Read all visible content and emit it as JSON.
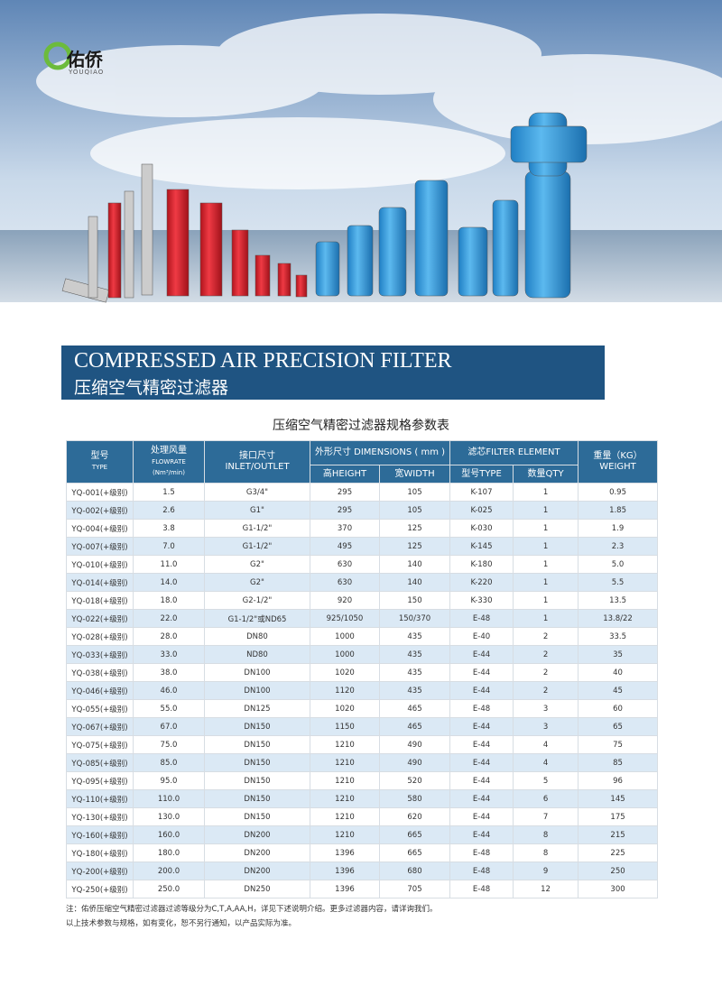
{
  "header": {
    "logo": "佑侨",
    "logo_sub": "YOUQIAO"
  },
  "banner": {
    "title_en": "COMPRESSED AIR PRECISION FILTER",
    "title_cn": "压缩空气精密过滤器"
  },
  "table": {
    "title": "压缩空气精密过滤器规格参数表",
    "head": {
      "type": [
        "型号",
        "TYPE"
      ],
      "flow": [
        "处理风量",
        "FLOWRATE",
        "(Nm³/min)"
      ],
      "inlet": [
        "接口尺寸",
        "INLET/OUTLET"
      ],
      "dimensions": "外形尺寸 DIMENSIONS ( mm )",
      "height": "高HEIGHT",
      "width": "宽WIDTH",
      "element": "滤芯FILTER ELEMENT",
      "element_type": "型号TYPE",
      "element_qty": "数量QTY",
      "weight": [
        "重量（KG）",
        "WEIGHT"
      ]
    },
    "rows": [
      [
        "YQ-001(+级别)",
        "1.5",
        "G3/4\"",
        "295",
        "105",
        "K-107",
        "1",
        "0.95"
      ],
      [
        "YQ-002(+级别)",
        "2.6",
        "G1\"",
        "295",
        "105",
        "K-025",
        "1",
        "1.85"
      ],
      [
        "YQ-004(+级别)",
        "3.8",
        "G1-1/2\"",
        "370",
        "125",
        "K-030",
        "1",
        "1.9"
      ],
      [
        "YQ-007(+级别)",
        "7.0",
        "G1-1/2\"",
        "495",
        "125",
        "K-145",
        "1",
        "2.3"
      ],
      [
        "YQ-010(+级别)",
        "11.0",
        "G2\"",
        "630",
        "140",
        "K-180",
        "1",
        "5.0"
      ],
      [
        "YQ-014(+级别)",
        "14.0",
        "G2\"",
        "630",
        "140",
        "K-220",
        "1",
        "5.5"
      ],
      [
        "YQ-018(+级别)",
        "18.0",
        "G2-1/2\"",
        "920",
        "150",
        "K-330",
        "1",
        "13.5"
      ],
      [
        "YQ-022(+级别)",
        "22.0",
        "G1-1/2\"或ND65",
        "925/1050",
        "150/370",
        "E-48",
        "1",
        "13.8/22"
      ],
      [
        "YQ-028(+级别)",
        "28.0",
        "DN80",
        "1000",
        "435",
        "E-40",
        "2",
        "33.5"
      ],
      [
        "YQ-033(+级别)",
        "33.0",
        "ND80",
        "1000",
        "435",
        "E-44",
        "2",
        "35"
      ],
      [
        "YQ-038(+级别)",
        "38.0",
        "DN100",
        "1020",
        "435",
        "E-44",
        "2",
        "40"
      ],
      [
        "YQ-046(+级别)",
        "46.0",
        "DN100",
        "1120",
        "435",
        "E-44",
        "2",
        "45"
      ],
      [
        "YQ-055(+级别)",
        "55.0",
        "DN125",
        "1020",
        "465",
        "E-48",
        "3",
        "60"
      ],
      [
        "YQ-067(+级别)",
        "67.0",
        "DN150",
        "1150",
        "465",
        "E-44",
        "3",
        "65"
      ],
      [
        "YQ-075(+级别)",
        "75.0",
        "DN150",
        "1210",
        "490",
        "E-44",
        "4",
        "75"
      ],
      [
        "YQ-085(+级别)",
        "85.0",
        "DN150",
        "1210",
        "490",
        "E-44",
        "4",
        "85"
      ],
      [
        "YQ-095(+级别)",
        "95.0",
        "DN150",
        "1210",
        "520",
        "E-44",
        "5",
        "96"
      ],
      [
        "YQ-110(+级别)",
        "110.0",
        "DN150",
        "1210",
        "580",
        "E-44",
        "6",
        "145"
      ],
      [
        "YQ-130(+级别)",
        "130.0",
        "DN150",
        "1210",
        "620",
        "E-44",
        "7",
        "175"
      ],
      [
        "YQ-160(+级别)",
        "160.0",
        "DN200",
        "1210",
        "665",
        "E-44",
        "8",
        "215"
      ],
      [
        "YQ-180(+级别)",
        "180.0",
        "DN200",
        "1396",
        "665",
        "E-48",
        "8",
        "225"
      ],
      [
        "YQ-200(+级别)",
        "200.0",
        "DN200",
        "1396",
        "680",
        "E-48",
        "9",
        "250"
      ],
      [
        "YQ-250(+级别)",
        "250.0",
        "DN250",
        "1396",
        "705",
        "E-48",
        "12",
        "300"
      ]
    ]
  },
  "notes": [
    "注：佑侨压缩空气精密过滤器过滤等级分为C,T,A,AA,H，详见下述说明介绍。更多过滤器内容，请详询我们。",
    "以上技术参数与规格，如有变化，恕不另行通知，以产品实际为准。"
  ]
}
